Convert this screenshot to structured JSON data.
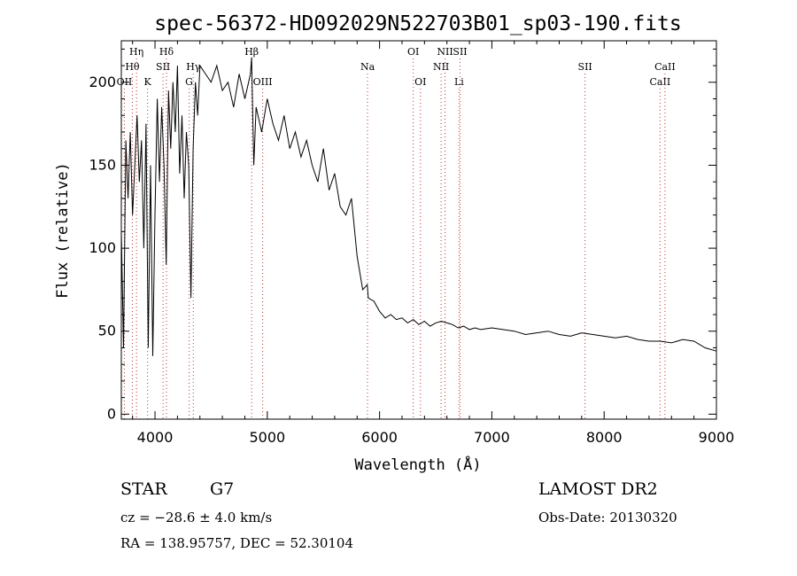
{
  "chart_data": {
    "type": "line",
    "title": "spec-56372-HD092029N522703B01_sp03-190.fits",
    "xlabel": "Wavelength (Å)",
    "ylabel": "Flux (relative)",
    "xlim": [
      3700,
      9000
    ],
    "ylim": [
      -3,
      225
    ],
    "xticks": [
      4000,
      5000,
      6000,
      7000,
      8000,
      9000
    ],
    "yticks": [
      0,
      50,
      100,
      150,
      200
    ],
    "line_color": "#000000",
    "marker_color": "#c03030",
    "grid": false,
    "series": [
      {
        "x": [
          3700,
          3720,
          3740,
          3760,
          3780,
          3800,
          3820,
          3840,
          3860,
          3880,
          3900,
          3920,
          3940,
          3960,
          3980,
          4000,
          4020,
          4040,
          4060,
          4080,
          4100,
          4120,
          4140,
          4160,
          4180,
          4200,
          4220,
          4240,
          4260,
          4280,
          4300,
          4320,
          4340,
          4360,
          4380,
          4400,
          4450,
          4500,
          4550,
          4600,
          4650,
          4700,
          4750,
          4800,
          4850,
          4860,
          4880,
          4900,
          4950,
          5000,
          5050,
          5100,
          5150,
          5200,
          5250,
          5300,
          5350,
          5400,
          5450,
          5500,
          5550,
          5600,
          5650,
          5700,
          5750,
          5800,
          5850,
          5890,
          5900,
          5950,
          6000,
          6050,
          6100,
          6150,
          6200,
          6250,
          6300,
          6350,
          6400,
          6450,
          6500,
          6550,
          6600,
          6650,
          6700,
          6750,
          6800,
          6850,
          6900,
          7000,
          7100,
          7200,
          7300,
          7400,
          7500,
          7600,
          7700,
          7800,
          7900,
          8000,
          8100,
          8200,
          8300,
          8400,
          8500,
          8600,
          8700,
          8800,
          8900,
          9000
        ],
        "values": [
          110,
          40,
          165,
          130,
          170,
          120,
          150,
          180,
          140,
          165,
          100,
          175,
          40,
          150,
          35,
          120,
          190,
          140,
          185,
          150,
          90,
          195,
          160,
          200,
          170,
          210,
          145,
          180,
          130,
          170,
          150,
          70,
          160,
          200,
          180,
          210,
          205,
          200,
          210,
          195,
          200,
          185,
          205,
          190,
          205,
          215,
          150,
          185,
          170,
          190,
          175,
          165,
          180,
          160,
          170,
          155,
          165,
          150,
          140,
          160,
          135,
          145,
          125,
          120,
          130,
          95,
          75,
          78,
          70,
          68,
          62,
          58,
          60,
          57,
          58,
          55,
          57,
          54,
          56,
          53,
          55,
          56,
          55,
          54,
          52,
          53,
          51,
          52,
          51,
          52,
          51,
          50,
          48,
          49,
          50,
          48,
          47,
          49,
          48,
          47,
          46,
          47,
          45,
          44,
          44,
          43,
          45,
          44,
          40,
          38
        ]
      }
    ],
    "line_markers": [
      {
        "label": "OII",
        "x": 3727,
        "row": 3
      },
      {
        "label": "Hθ",
        "x": 3798,
        "row": 2
      },
      {
        "label": "Hη",
        "x": 3835,
        "row": 1
      },
      {
        "label": "K",
        "x": 3934,
        "row": 3
      },
      {
        "label": "SII",
        "x": 4072,
        "row": 2
      },
      {
        "label": "Hδ",
        "x": 4102,
        "row": 1
      },
      {
        "label": "G",
        "x": 4304,
        "row": 3
      },
      {
        "label": "Hγ",
        "x": 4341,
        "row": 2
      },
      {
        "label": "Hβ",
        "x": 4861,
        "row": 1
      },
      {
        "label": "OIII",
        "x": 4959,
        "row": 3
      },
      {
        "label": "Na",
        "x": 5893,
        "row": 2
      },
      {
        "label": "OI",
        "x": 6300,
        "row": 1
      },
      {
        "label": "OI",
        "x": 6364,
        "row": 3
      },
      {
        "label": "NII",
        "x": 6548,
        "row": 2
      },
      {
        "label": "NII",
        "x": 6583,
        "row": 1
      },
      {
        "label": "Li",
        "x": 6708,
        "row": 3
      },
      {
        "label": "SII",
        "x": 6717,
        "row": 1
      },
      {
        "label": "SII",
        "x": 7830,
        "row": 2
      },
      {
        "label": "CaII",
        "x": 8498,
        "row": 3
      },
      {
        "label": "CaII",
        "x": 8542,
        "row": 2
      }
    ]
  },
  "info": {
    "class": "STAR",
    "subclass": "G7",
    "cz": "cz = −28.6 ± 4.0 km/s",
    "radec": "RA = 138.95757, DEC =  52.30104",
    "survey": "LAMOST DR2",
    "obsdate": "Obs-Date: 20130320"
  }
}
